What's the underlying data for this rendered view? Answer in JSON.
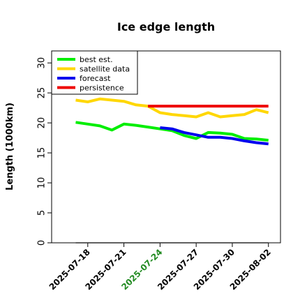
{
  "chart_data": {
    "type": "line",
    "title": "Ice edge length",
    "ylabel": "Length (1000km)",
    "xlabel": "",
    "ylim": [
      0,
      32
    ],
    "xlim": [
      "2025-07-15",
      "2025-08-03"
    ],
    "yticks": [
      0,
      5,
      10,
      15,
      20,
      25,
      30
    ],
    "xticks": [
      {
        "label": "2025-07-18",
        "color": "#000000"
      },
      {
        "label": "2025-07-21",
        "color": "#000000"
      },
      {
        "label": "2025-07-24",
        "color": "#228B22"
      },
      {
        "label": "2025-07-27",
        "color": "#000000"
      },
      {
        "label": "2025-07-30",
        "color": "#000000"
      },
      {
        "label": "2025-08-02",
        "color": "#000000"
      }
    ],
    "legend_position": "top-left",
    "series": [
      {
        "name": "best est.",
        "color": "#00ee00",
        "x": [
          "2025-07-17",
          "2025-07-18",
          "2025-07-19",
          "2025-07-20",
          "2025-07-21",
          "2025-07-22",
          "2025-07-23",
          "2025-07-24",
          "2025-07-25",
          "2025-07-26",
          "2025-07-27",
          "2025-07-28",
          "2025-07-29",
          "2025-07-30",
          "2025-07-31",
          "2025-08-01",
          "2025-08-02"
        ],
        "y": [
          20.1,
          19.8,
          19.5,
          18.8,
          19.8,
          19.6,
          19.3,
          19.0,
          18.7,
          17.9,
          17.4,
          18.4,
          18.3,
          18.1,
          17.4,
          17.3,
          17.1
        ]
      },
      {
        "name": "satellite data",
        "color": "#ffd700",
        "x": [
          "2025-07-17",
          "2025-07-18",
          "2025-07-19",
          "2025-07-20",
          "2025-07-21",
          "2025-07-22",
          "2025-07-23",
          "2025-07-24",
          "2025-07-25",
          "2025-07-26",
          "2025-07-27",
          "2025-07-28",
          "2025-07-29",
          "2025-07-30",
          "2025-07-31",
          "2025-08-01",
          "2025-08-02"
        ],
        "y": [
          23.8,
          23.5,
          24.0,
          23.8,
          23.6,
          23.0,
          22.8,
          21.7,
          21.4,
          21.2,
          21.0,
          21.7,
          21.0,
          21.2,
          21.4,
          22.2,
          21.7
        ]
      },
      {
        "name": "forecast",
        "color": "#0000ee",
        "x": [
          "2025-07-24",
          "2025-07-25",
          "2025-07-26",
          "2025-07-27",
          "2025-07-28",
          "2025-07-29",
          "2025-07-30",
          "2025-07-31",
          "2025-08-01",
          "2025-08-02"
        ],
        "y": [
          19.2,
          19.0,
          18.4,
          18.0,
          17.6,
          17.6,
          17.4,
          17.0,
          16.7,
          16.5
        ]
      },
      {
        "name": "persistence",
        "color": "#ee0000",
        "x": [
          "2025-07-23",
          "2025-08-02"
        ],
        "y": [
          22.8,
          22.8
        ]
      },
      {
        "color": "#808080",
        "x": [
          "2025-07-17",
          "2025-08-02"
        ],
        "y": [
          0,
          0
        ]
      }
    ]
  }
}
